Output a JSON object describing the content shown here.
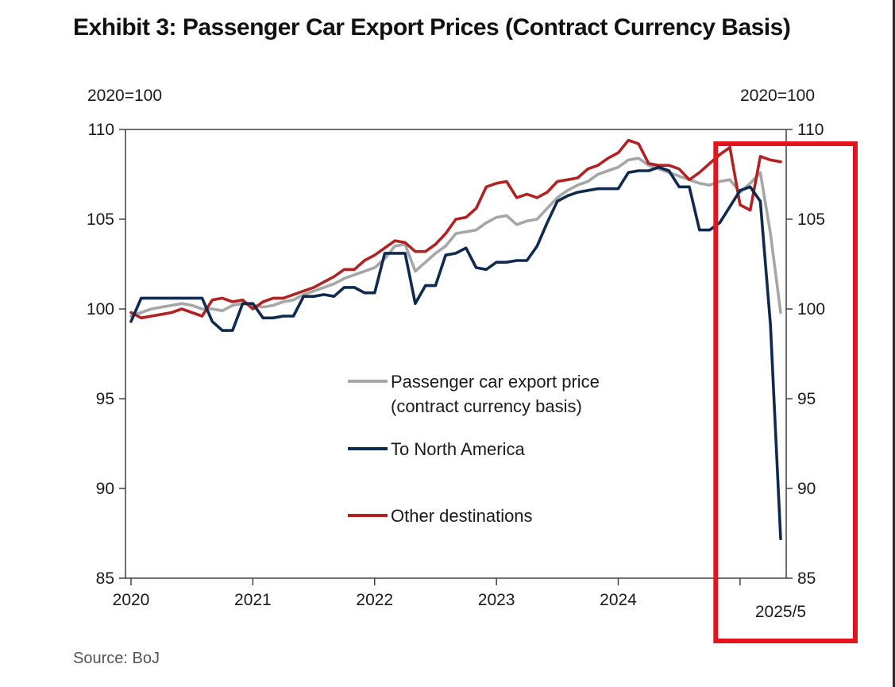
{
  "title": "Exhibit 3: Passenger Car Export Prices (Contract Currency Basis)",
  "unit_left": "2020=100",
  "unit_right": "2020=100",
  "source": "Source: BoJ",
  "chart_data": {
    "type": "line",
    "title": "Exhibit 3: Passenger Car Export Prices (Contract Currency Basis)",
    "ylabel": "2020=100",
    "ylim": [
      85,
      110
    ],
    "yticks": [
      85,
      90,
      95,
      100,
      105,
      110
    ],
    "xlim": [
      "2020/1",
      "2025/5"
    ],
    "xtick_labels": [
      "2020",
      "2021",
      "2022",
      "2023",
      "2024",
      "2025/5"
    ],
    "grid": false,
    "legend_position": "center",
    "x": [
      "2020/1",
      "2020/2",
      "2020/3",
      "2020/4",
      "2020/5",
      "2020/6",
      "2020/7",
      "2020/8",
      "2020/9",
      "2020/10",
      "2020/11",
      "2020/12",
      "2021/1",
      "2021/2",
      "2021/3",
      "2021/4",
      "2021/5",
      "2021/6",
      "2021/7",
      "2021/8",
      "2021/9",
      "2021/10",
      "2021/11",
      "2021/12",
      "2022/1",
      "2022/2",
      "2022/3",
      "2022/4",
      "2022/5",
      "2022/6",
      "2022/7",
      "2022/8",
      "2022/9",
      "2022/10",
      "2022/11",
      "2022/12",
      "2023/1",
      "2023/2",
      "2023/3",
      "2023/4",
      "2023/5",
      "2023/6",
      "2023/7",
      "2023/8",
      "2023/9",
      "2023/10",
      "2023/11",
      "2023/12",
      "2024/1",
      "2024/2",
      "2024/3",
      "2024/4",
      "2024/5",
      "2024/6",
      "2024/7",
      "2024/8",
      "2024/9",
      "2024/10",
      "2024/11",
      "2024/12",
      "2025/1",
      "2025/2",
      "2025/3",
      "2025/4",
      "2025/5"
    ],
    "series": [
      {
        "name": "Passenger car export price\n(contract currency basis)",
        "color": "#a6a6a6",
        "values": [
          99.6,
          99.8,
          100.0,
          100.1,
          100.2,
          100.3,
          100.2,
          100.0,
          100.0,
          99.9,
          100.2,
          100.3,
          100.2,
          100.1,
          100.2,
          100.4,
          100.5,
          100.8,
          101.0,
          101.2,
          101.4,
          101.7,
          101.9,
          102.1,
          102.3,
          102.8,
          103.5,
          103.6,
          102.1,
          102.6,
          103.1,
          103.5,
          104.2,
          104.3,
          104.4,
          104.8,
          105.1,
          105.2,
          104.7,
          104.9,
          105.0,
          105.6,
          106.2,
          106.6,
          106.9,
          107.1,
          107.5,
          107.7,
          107.9,
          108.3,
          108.4,
          108.0,
          107.8,
          107.6,
          107.4,
          107.2,
          107.0,
          106.9,
          107.1,
          107.2,
          106.5,
          107.0,
          107.6,
          104.2,
          99.8
        ]
      },
      {
        "name": "To North America",
        "color": "#0f2a4f",
        "values": [
          99.3,
          100.6,
          100.6,
          100.6,
          100.6,
          100.6,
          100.6,
          100.6,
          99.3,
          98.8,
          98.8,
          100.3,
          100.3,
          99.5,
          99.5,
          99.6,
          99.6,
          100.7,
          100.7,
          100.8,
          100.7,
          101.2,
          101.2,
          100.9,
          100.9,
          103.1,
          103.1,
          103.1,
          100.3,
          101.3,
          101.3,
          103.0,
          103.1,
          103.4,
          102.3,
          102.2,
          102.6,
          102.6,
          102.7,
          102.7,
          103.5,
          104.8,
          106.0,
          106.3,
          106.5,
          106.6,
          106.7,
          106.7,
          106.7,
          107.6,
          107.7,
          107.7,
          107.9,
          107.7,
          106.8,
          106.8,
          104.4,
          104.4,
          104.8,
          105.7,
          106.6,
          106.8,
          106.0,
          99.1,
          87.2
        ]
      },
      {
        "name": "Other destinations",
        "color": "#b22222",
        "values": [
          99.8,
          99.5,
          99.6,
          99.7,
          99.8,
          100.0,
          99.8,
          99.6,
          100.5,
          100.6,
          100.4,
          100.5,
          100.0,
          100.4,
          100.6,
          100.6,
          100.8,
          101.0,
          101.2,
          101.5,
          101.8,
          102.2,
          102.2,
          102.7,
          103.0,
          103.4,
          103.8,
          103.7,
          103.2,
          103.2,
          103.6,
          104.2,
          105.0,
          105.1,
          105.6,
          106.8,
          107.0,
          107.1,
          106.2,
          106.4,
          106.2,
          106.5,
          107.1,
          107.2,
          107.3,
          107.8,
          108.0,
          108.4,
          108.7,
          109.4,
          109.2,
          108.1,
          108.0,
          108.0,
          107.8,
          107.2,
          107.6,
          108.1,
          108.6,
          109.0,
          105.8,
          105.5,
          108.5,
          108.3,
          108.2
        ]
      }
    ]
  },
  "annotation": {
    "type": "highlight-box",
    "color": "#e3141b",
    "from": "2024/11",
    "to": "2025/5"
  }
}
